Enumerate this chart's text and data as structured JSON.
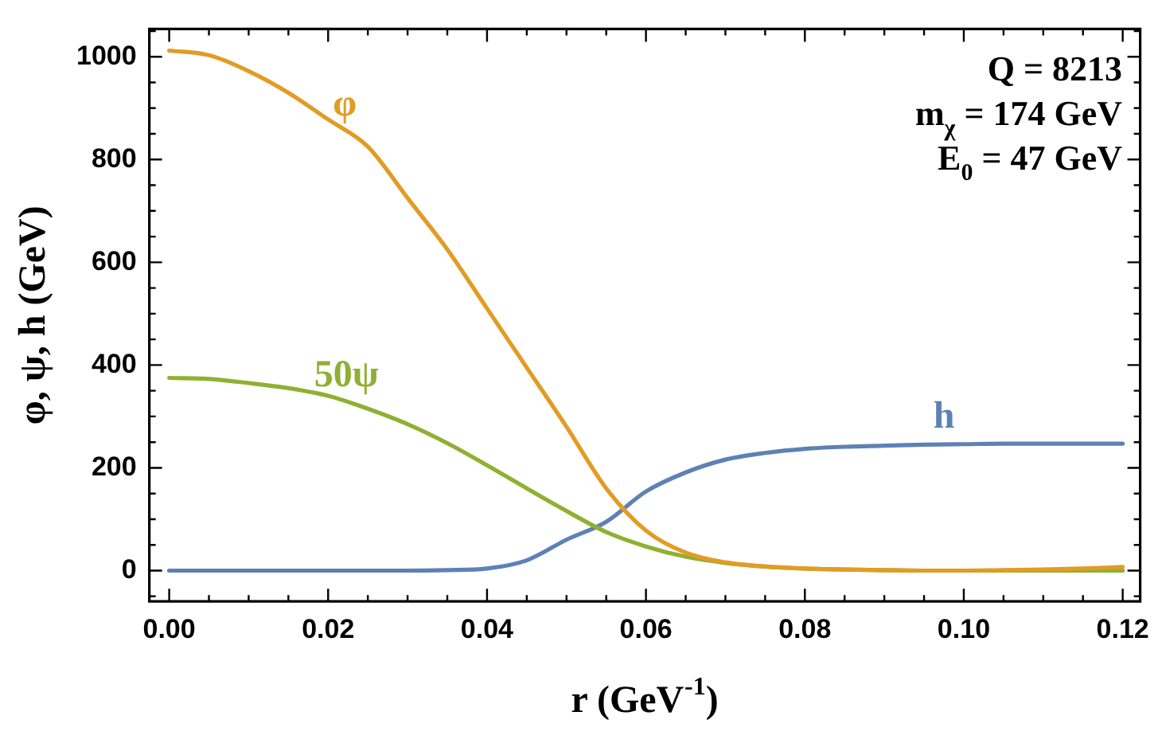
{
  "chart_data": {
    "type": "line",
    "xlabel": "r (GeV$^{-1}$)",
    "ylabel": "φ, ψ, h (GeV)",
    "annotations": [
      "Q = 8213",
      "m$_{χ}$ = 174 GeV",
      "E$_{0}$ = 47 GeV"
    ],
    "x": [
      0,
      0.005,
      0.01,
      0.015,
      0.02,
      0.025,
      0.03,
      0.035,
      0.04,
      0.045,
      0.05,
      0.055,
      0.06,
      0.065,
      0.07,
      0.075,
      0.08,
      0.085,
      0.09,
      0.095,
      0.1,
      0.105,
      0.11,
      0.115,
      0.12
    ],
    "series": [
      {
        "name": "φ",
        "color": "#e19c24",
        "values": [
          1012,
          1003,
          972,
          930,
          878,
          825,
          725,
          625,
          510,
          395,
          280,
          160,
          78,
          35,
          16,
          8,
          4,
          2,
          1,
          0,
          0,
          1,
          2,
          4,
          7
        ]
      },
      {
        "name": "50ψ",
        "color": "#8fb032",
        "values": [
          375,
          373,
          365,
          355,
          340,
          315,
          285,
          248,
          205,
          160,
          116,
          75,
          47,
          27,
          15,
          8,
          4,
          2,
          1,
          0,
          0,
          0,
          0,
          0,
          0
        ]
      },
      {
        "name": "h",
        "color": "#5e81b5",
        "values": [
          0,
          0,
          0,
          0,
          0,
          0,
          0,
          1,
          4,
          20,
          60,
          95,
          154,
          191,
          216,
          229,
          237,
          241,
          243,
          245,
          246,
          247,
          247,
          247,
          247
        ]
      }
    ],
    "xlim": [
      -0.0025,
      0.1222
    ],
    "ylim": [
      -60,
      1054
    ],
    "xticks": [
      {
        "value": 0.005,
        "label": null
      },
      {
        "value": 0.01,
        "label": null
      },
      {
        "value": 0.015,
        "label": null
      },
      {
        "value": 0,
        "label": "0.00"
      },
      {
        "value": 0.02,
        "label": "0.02"
      },
      {
        "value": 0.025,
        "label": null
      },
      {
        "value": 0.03,
        "label": null
      },
      {
        "value": 0.035,
        "label": null
      },
      {
        "value": 0.04,
        "label": "0.04"
      },
      {
        "value": 0.045,
        "label": null
      },
      {
        "value": 0.05,
        "label": null
      },
      {
        "value": 0.055,
        "label": null
      },
      {
        "value": 0.06,
        "label": "0.06"
      },
      {
        "value": 0.065,
        "label": null
      },
      {
        "value": 0.07,
        "label": null
      },
      {
        "value": 0.075,
        "label": null
      },
      {
        "value": 0.08,
        "label": "0.08"
      },
      {
        "value": 0.085,
        "label": null
      },
      {
        "value": 0.09,
        "label": null
      },
      {
        "value": 0.095,
        "label": null
      },
      {
        "value": 0.1,
        "label": "0.10"
      },
      {
        "value": 0.105,
        "label": null
      },
      {
        "value": 0.11,
        "label": null
      },
      {
        "value": 0.115,
        "label": null
      },
      {
        "value": 0.12,
        "label": "0.12"
      }
    ],
    "yticks": [
      {
        "value": -50,
        "label": null
      },
      0,
      {
        "value": 50,
        "label": null
      },
      {
        "value": 100,
        "label": null
      },
      {
        "value": 150,
        "label": null
      },
      200,
      {
        "value": 250,
        "label": null
      },
      {
        "value": 300,
        "label": null
      },
      {
        "value": 350,
        "label": null
      },
      400,
      {
        "value": 450,
        "label": null
      },
      {
        "value": 500,
        "label": null
      },
      {
        "value": 550,
        "label": null
      },
      600,
      {
        "value": 650,
        "label": null
      },
      {
        "value": 700,
        "label": null
      },
      {
        "value": 750,
        "label": null
      },
      800,
      {
        "value": 850,
        "label": null
      },
      {
        "value": 900,
        "label": null
      },
      {
        "value": 950,
        "label": null
      },
      1000,
      {
        "value": 1050,
        "label": null
      }
    ],
    "grid": false,
    "legend": false,
    "marker": "none",
    "line_style": "solid"
  }
}
